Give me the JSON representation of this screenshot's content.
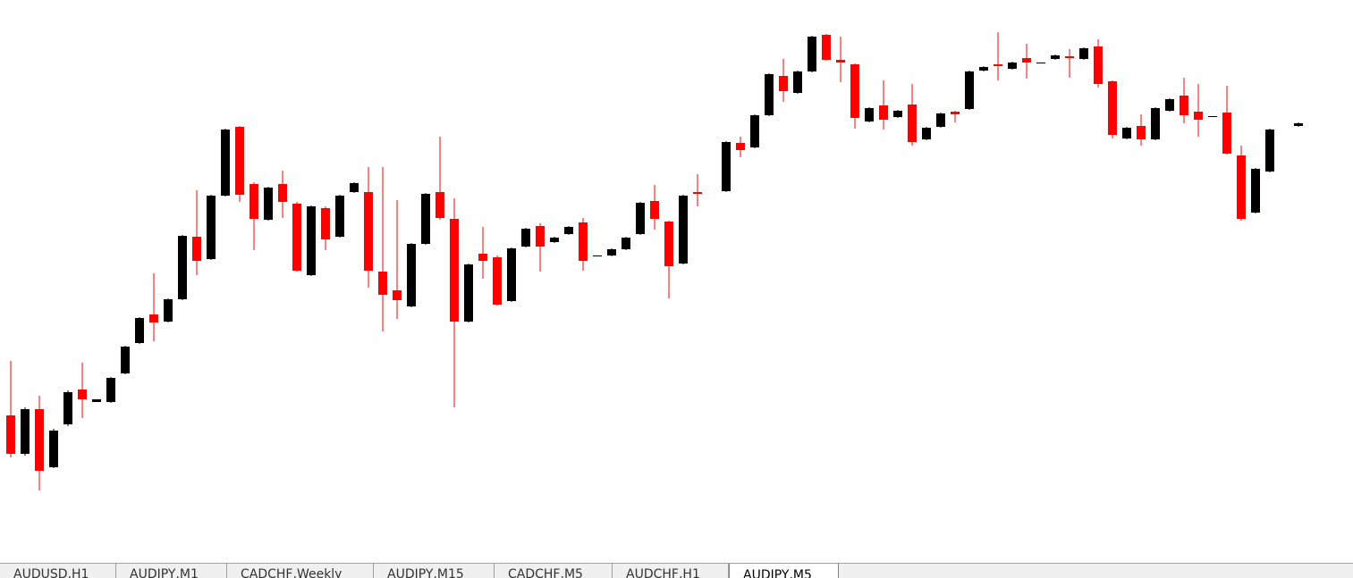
{
  "chart_data": {
    "type": "candlestick",
    "colors": {
      "up": "#000000",
      "down": "#ff0000"
    },
    "ylim": [
      0,
      646
    ],
    "open": [
      181,
      138,
      188,
      123,
      171,
      210,
      196,
      196,
      228,
      262,
      294,
      286,
      311,
      381,
      356,
      427,
      504,
      440,
      400,
      440,
      418,
      338,
      413,
      381,
      431,
      431,
      342,
      321,
      303,
      373,
      431,
      401,
      286,
      362,
      358,
      309,
      370,
      393,
      375,
      384,
      397,
      359,
      360,
      367,
      384,
      421,
      398,
      351,
      431,
      null,
      432,
      486,
      481,
      517,
      561,
      542,
      566,
      607,
      579,
      574,
      510,
      528,
      515,
      529,
      490,
      504,
      521,
      524,
      567,
      574,
      569,
      581,
      575,
      580,
      583,
      580,
      594,
      555,
      491,
      505,
      490,
      522,
      539,
      521,
      515,
      520,
      472,
      408,
      454,
      null,
      505
    ],
    "high": [
      242,
      190,
      203,
      166,
      209,
      240,
      199,
      224,
      259,
      291,
      340,
      312,
      383,
      433,
      428,
      502,
      505,
      442,
      437,
      455,
      420,
      416,
      415,
      428,
      442,
      459,
      459,
      422,
      374,
      430,
      493,
      424,
      351,
      392,
      360,
      369,
      391,
      396,
      381,
      393,
      402,
      360,
      368,
      381,
      420,
      439,
      399,
      428,
      451,
      null,
      488,
      493,
      518,
      564,
      580,
      567,
      606,
      608,
      605,
      575,
      526,
      556,
      523,
      552,
      504,
      520,
      522,
      567,
      572,
      610,
      577,
      597,
      576,
      585,
      591,
      593,
      602,
      556,
      504,
      518,
      526,
      536,
      559,
      552,
      516,
      550,
      483,
      458,
      502,
      null,
      509
    ],
    "low": [
      134,
      136,
      97,
      122,
      169,
      178,
      196,
      195,
      227,
      261,
      264,
      285,
      310,
      338,
      355,
      426,
      420,
      366,
      399,
      402,
      342,
      337,
      366,
      380,
      430,
      324,
      275,
      289,
      302,
      372,
      400,
      190,
      285,
      334,
      304,
      308,
      369,
      342,
      374,
      383,
      343,
      359,
      359,
      366,
      383,
      389,
      312,
      350,
      415,
      null,
      431,
      470,
      480,
      516,
      532,
      541,
      565,
      578,
      554,
      502,
      509,
      501,
      514,
      483,
      489,
      503,
      509,
      523,
      566,
      556,
      568,
      558,
      575,
      579,
      559,
      579,
      548,
      491,
      490,
      483,
      489,
      521,
      508,
      493,
      515,
      473,
      399,
      407,
      453,
      null,
      504
    ],
    "close": [
      138,
      188,
      119,
      164,
      207,
      199,
      199,
      223,
      258,
      290,
      285,
      311,
      382,
      354,
      427,
      501,
      428,
      401,
      436,
      420,
      343,
      415,
      378,
      427,
      441,
      343,
      316,
      310,
      373,
      429,
      402,
      286,
      350,
      354,
      305,
      368,
      390,
      370,
      380,
      392,
      354,
      360,
      367,
      380,
      419,
      401,
      348,
      427,
      429,
      null,
      487,
      478,
      517,
      563,
      544,
      566,
      605,
      579,
      576,
      514,
      525,
      512,
      522,
      487,
      503,
      519,
      518,
      566,
      571,
      572,
      576,
      576,
      576,
      584,
      581,
      592,
      552,
      495,
      503,
      490,
      525,
      535,
      517,
      512,
      516,
      474,
      401,
      457,
      501,
      null,
      508
    ]
  },
  "tabs": [
    {
      "label": "AUDUSD,H1",
      "active": false
    },
    {
      "label": "AUDJPY,M1",
      "active": false
    },
    {
      "label": "CADCHF,Weekly",
      "active": false
    },
    {
      "label": "AUDJPY,M15",
      "active": false
    },
    {
      "label": "CADCHF,M5",
      "active": false
    },
    {
      "label": "AUDCHF,H1",
      "active": false
    },
    {
      "label": "AUDJPY,M5",
      "active": true
    }
  ]
}
